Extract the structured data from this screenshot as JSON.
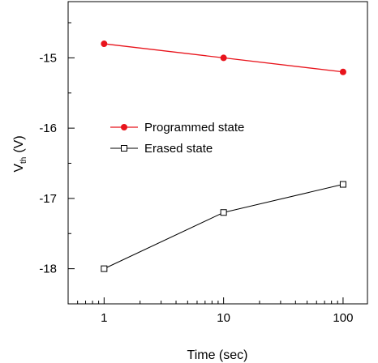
{
  "chart_data": {
    "type": "line",
    "x": [
      1,
      10,
      100
    ],
    "xlabel": "Time (sec)",
    "ylabel_main": "V",
    "ylabel_sub": "th",
    "ylabel_unit": "(V)",
    "xscale": "log",
    "xlim": [
      0.5,
      160
    ],
    "ylim": [
      -18.5,
      -14.2
    ],
    "x_ticks": [
      1,
      10,
      100
    ],
    "x_tick_labels": [
      "1",
      "10",
      "100"
    ],
    "y_ticks": [
      -15,
      -16,
      -17,
      -18
    ],
    "y_tick_labels": [
      "-15",
      "-16",
      "-17",
      "-18"
    ],
    "grid": false,
    "legend_position": "center-left",
    "series": [
      {
        "name": "Programmed state",
        "values": [
          -14.8,
          -15.0,
          -15.2
        ],
        "color": "#e8141c",
        "marker": "filled-circle"
      },
      {
        "name": "Erased state",
        "values": [
          -18.0,
          -17.2,
          -16.8
        ],
        "color": "#000000",
        "marker": "open-square"
      }
    ]
  }
}
